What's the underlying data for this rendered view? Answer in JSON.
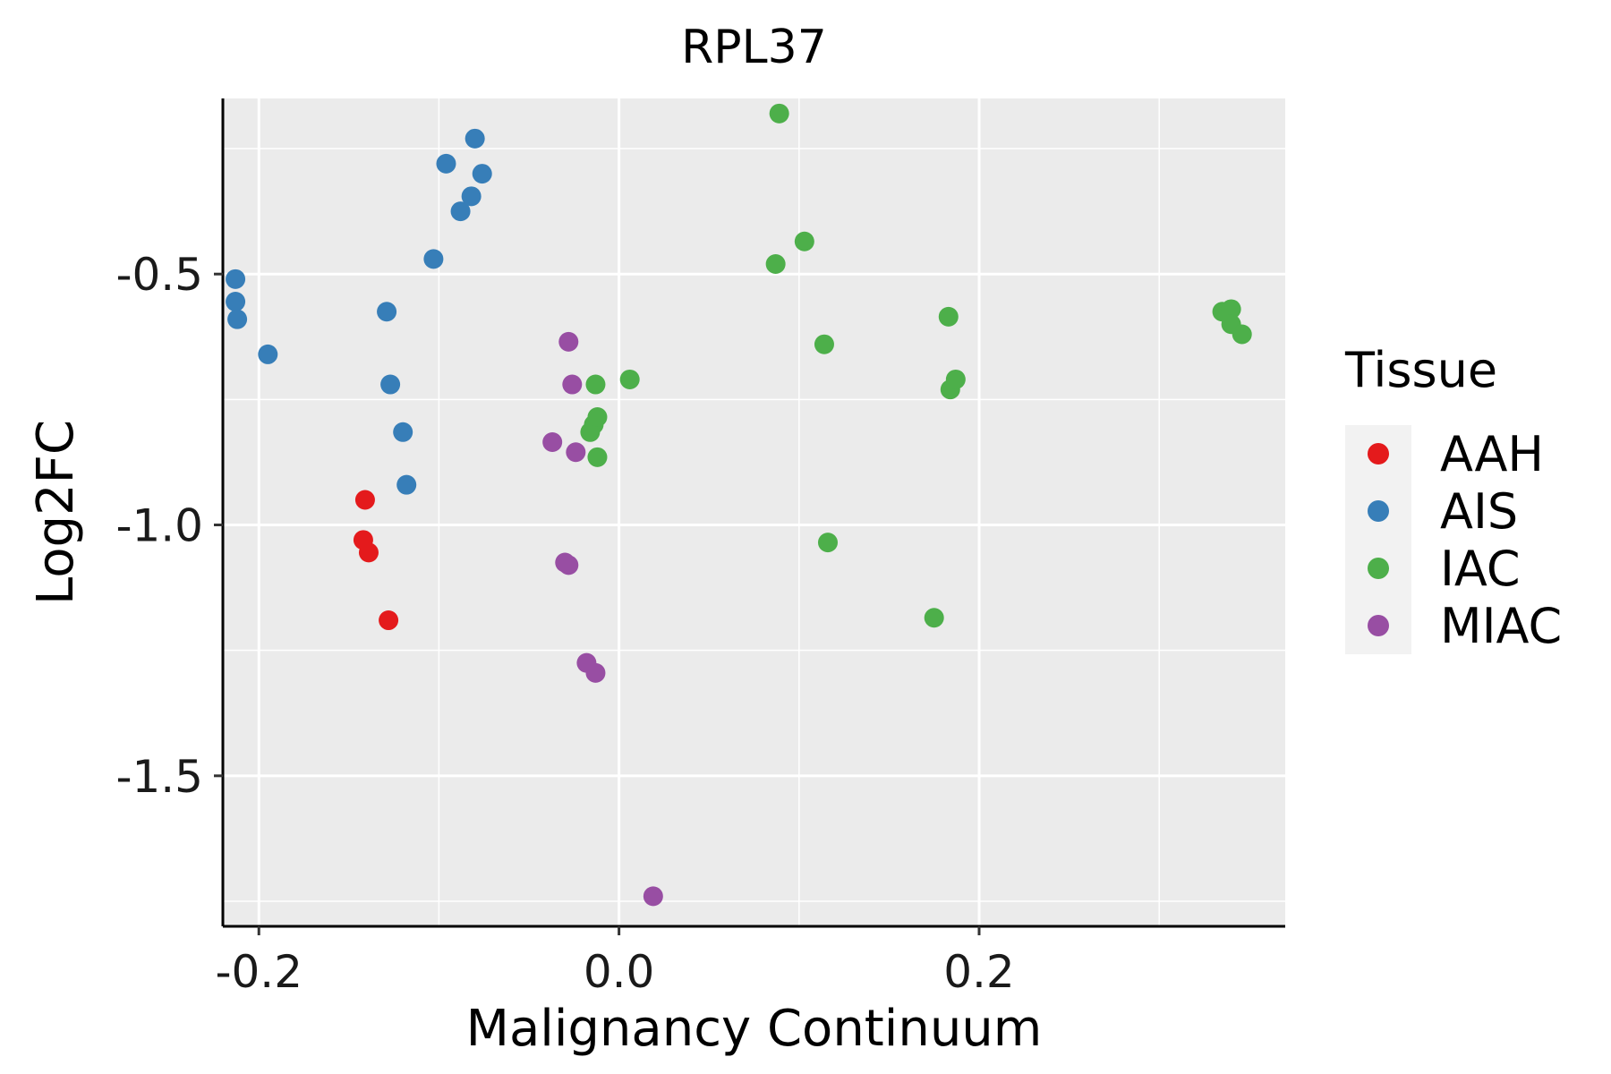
{
  "chart_data": {
    "type": "scatter",
    "title": "RPL37",
    "xlabel": "Malignancy Continuum",
    "ylabel": "Log2FC",
    "xlim": [
      -0.22,
      0.37
    ],
    "ylim": [
      -1.8,
      -0.15
    ],
    "x_ticks": [
      -0.2,
      0.0,
      0.2
    ],
    "x_tick_labels": [
      "-0.2",
      "0.0",
      "0.2"
    ],
    "y_ticks": [
      -1.5,
      -1.0,
      -0.5
    ],
    "y_tick_labels": [
      "-1.5",
      "-1.0",
      "-0.5"
    ],
    "grid": true,
    "legend": {
      "title": "Tissue",
      "position": "right"
    },
    "series": [
      {
        "name": "AAH",
        "color": "#e41a1c",
        "points": [
          [
            -0.141,
            -0.95
          ],
          [
            -0.142,
            -1.03
          ],
          [
            -0.139,
            -1.055
          ],
          [
            -0.128,
            -1.19
          ]
        ]
      },
      {
        "name": "AIS",
        "color": "#377eb8",
        "points": [
          [
            -0.213,
            -0.51
          ],
          [
            -0.213,
            -0.555
          ],
          [
            -0.212,
            -0.59
          ],
          [
            -0.195,
            -0.66
          ],
          [
            -0.129,
            -0.575
          ],
          [
            -0.127,
            -0.72
          ],
          [
            -0.12,
            -0.815
          ],
          [
            -0.118,
            -0.92
          ],
          [
            -0.103,
            -0.47
          ],
          [
            -0.096,
            -0.28
          ],
          [
            -0.088,
            -0.375
          ],
          [
            -0.082,
            -0.345
          ],
          [
            -0.08,
            -0.23
          ],
          [
            -0.076,
            -0.3
          ]
        ]
      },
      {
        "name": "IAC",
        "color": "#4daf4a",
        "points": [
          [
            -0.014,
            -0.8
          ],
          [
            -0.016,
            -0.815
          ],
          [
            -0.013,
            -0.72
          ],
          [
            -0.012,
            -0.785
          ],
          [
            -0.012,
            -0.865
          ],
          [
            0.006,
            -0.71
          ],
          [
            0.087,
            -0.48
          ],
          [
            0.089,
            -0.18
          ],
          [
            0.103,
            -0.435
          ],
          [
            0.114,
            -0.64
          ],
          [
            0.116,
            -1.035
          ],
          [
            0.175,
            -1.185
          ],
          [
            0.183,
            -0.585
          ],
          [
            0.184,
            -0.73
          ],
          [
            0.187,
            -0.71
          ],
          [
            0.335,
            -0.575
          ],
          [
            0.34,
            -0.57
          ],
          [
            0.34,
            -0.6
          ],
          [
            0.346,
            -0.62
          ]
        ]
      },
      {
        "name": "MIAC",
        "color": "#984ea3",
        "points": [
          [
            -0.037,
            -0.835
          ],
          [
            -0.03,
            -1.075
          ],
          [
            -0.028,
            -0.635
          ],
          [
            -0.028,
            -1.08
          ],
          [
            -0.026,
            -0.72
          ],
          [
            -0.024,
            -0.855
          ],
          [
            -0.018,
            -1.275
          ],
          [
            -0.013,
            -1.295
          ],
          [
            0.019,
            -1.74
          ]
        ]
      }
    ]
  }
}
